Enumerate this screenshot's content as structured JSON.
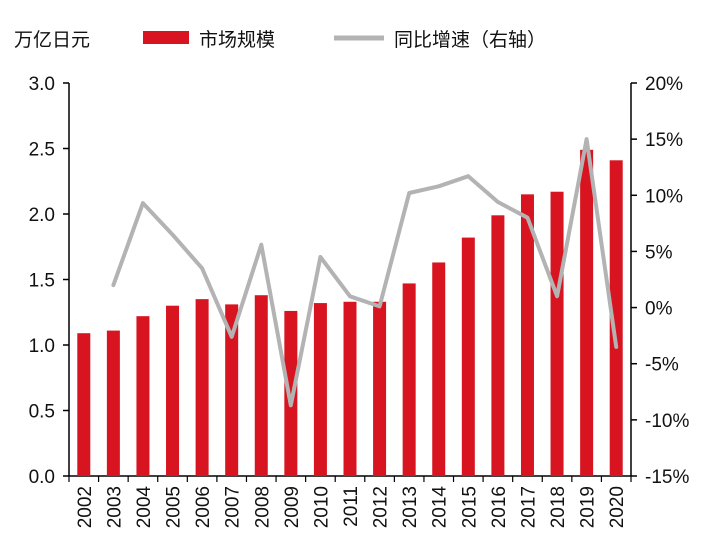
{
  "chart_data": {
    "type": "bar",
    "unit_label": "万亿日元",
    "categories": [
      "2002",
      "2003",
      "2004",
      "2005",
      "2006",
      "2007",
      "2008",
      "2009",
      "2010",
      "2011",
      "2012",
      "2013",
      "2014",
      "2015",
      "2016",
      "2017",
      "2018",
      "2019",
      "2020"
    ],
    "series": [
      {
        "name": "市场规模",
        "type": "bar",
        "axis": "left",
        "color": "#d7141f",
        "values": [
          1.09,
          1.11,
          1.22,
          1.3,
          1.35,
          1.31,
          1.38,
          1.26,
          1.32,
          1.33,
          1.33,
          1.47,
          1.63,
          1.82,
          1.99,
          2.15,
          2.17,
          2.49,
          2.41
        ]
      },
      {
        "name": "同比增速（右轴）",
        "type": "line",
        "axis": "right",
        "color": "#b3b3b3",
        "values": [
          null,
          2.0,
          9.3,
          6.5,
          3.5,
          -2.6,
          5.6,
          -8.7,
          4.5,
          1.0,
          0.1,
          10.2,
          10.8,
          11.7,
          9.4,
          8.0,
          1.0,
          15.0,
          -3.5
        ]
      }
    ],
    "ylim": [
      0,
      3.0
    ],
    "yticks": [
      "0.0",
      "0.5",
      "1.0",
      "1.5",
      "2.0",
      "2.5",
      "3.0"
    ],
    "y2lim": [
      -15,
      20
    ],
    "y2ticks": [
      "-15%",
      "-10%",
      "-5%",
      "0%",
      "5%",
      "10%",
      "15%",
      "20%"
    ],
    "grid": false,
    "legend_position": "top"
  }
}
